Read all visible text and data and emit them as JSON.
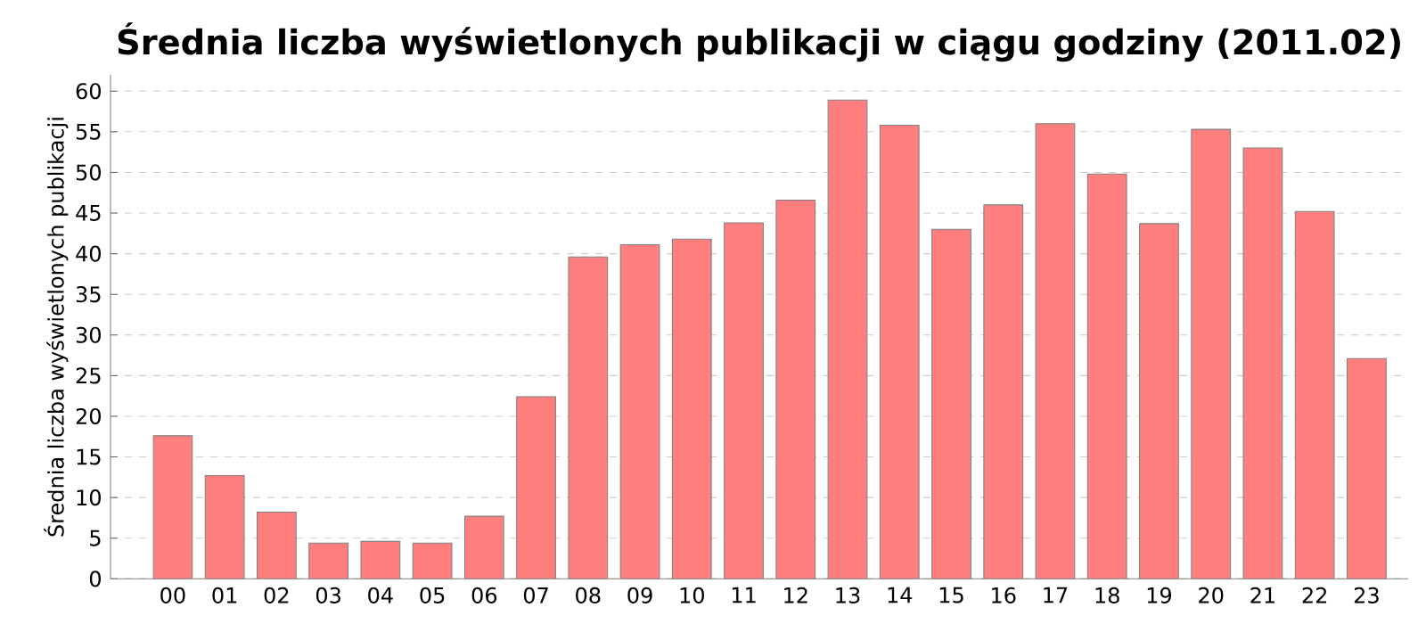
{
  "chart_data": {
    "type": "bar",
    "title": "Średnia liczba wyświetlonych publikacji w ciągu godziny (2011.02)",
    "ylabel": "Średnia liczba wyświetlonych publikacji",
    "categories": [
      "00",
      "01",
      "02",
      "03",
      "04",
      "05",
      "06",
      "07",
      "08",
      "09",
      "10",
      "11",
      "12",
      "13",
      "14",
      "15",
      "16",
      "17",
      "18",
      "19",
      "20",
      "21",
      "22",
      "23"
    ],
    "values": [
      17.6,
      12.7,
      8.2,
      4.4,
      4.6,
      4.4,
      7.7,
      22.4,
      39.6,
      41.1,
      41.8,
      43.8,
      46.6,
      58.9,
      55.8,
      43.0,
      46.0,
      56.0,
      49.8,
      43.7,
      55.3,
      53.0,
      45.2,
      27.1
    ],
    "color": "#ff7f7f",
    "ylim": [
      0,
      62
    ],
    "yticks": [
      0,
      5,
      10,
      15,
      20,
      25,
      30,
      35,
      40,
      45,
      50,
      55,
      60
    ],
    "grid": "y"
  }
}
